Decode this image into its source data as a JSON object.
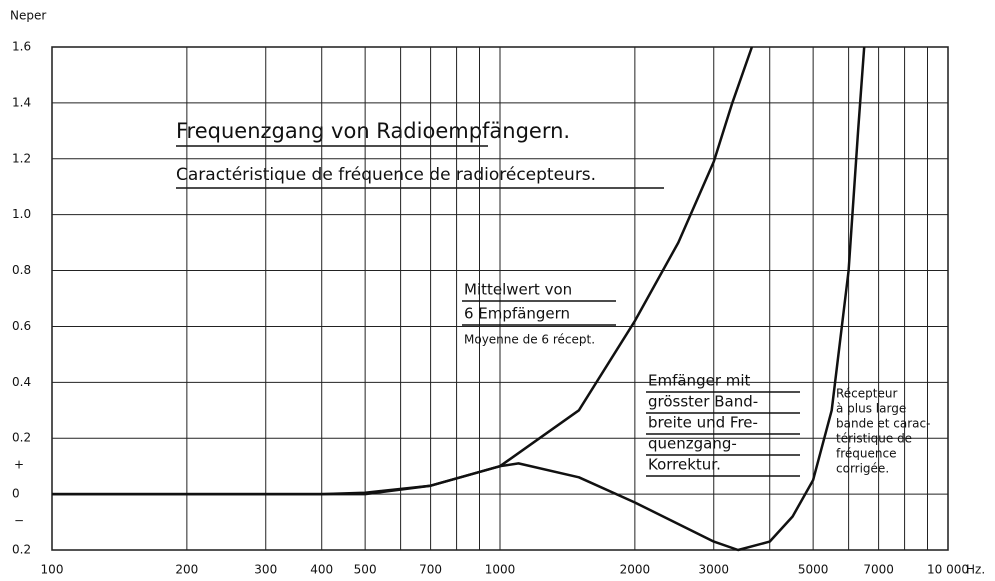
{
  "chart_data": {
    "type": "line",
    "title": "Frequenzgang von Radioempfängern.",
    "subtitle": "Caractéristique de fréquence de radiorécepteurs.",
    "ylabel": "Neper",
    "xlabel": "Hz.",
    "xscale": "log",
    "grid": true,
    "xlim": [
      100,
      10000
    ],
    "ylim": [
      -0.2,
      1.6
    ],
    "xticks": [
      100,
      200,
      300,
      400,
      500,
      700,
      1000,
      2000,
      3000,
      5000,
      7000,
      {
        "value": 10000,
        "label": "10 000"
      }
    ],
    "x_minor_ticks": [
      600,
      800,
      900,
      4000,
      6000,
      8000,
      9000
    ],
    "yticks": [
      {
        "value": -0.2,
        "label": "0.2"
      },
      0,
      0.2,
      0.4,
      0.6,
      0.8,
      {
        "value": 1,
        "label": "1.0"
      },
      1.2,
      1.4,
      1.6
    ],
    "sign_plus": "+",
    "sign_minus": "−",
    "series": [
      {
        "color": "#111",
        "x": [
          100,
          300,
          400,
          500,
          700,
          1000,
          1500,
          2000,
          2500,
          3000,
          3300,
          3650
        ],
        "values": [
          0,
          0,
          0,
          0.005,
          0.03,
          0.1,
          0.3,
          0.62,
          0.9,
          1.19,
          1.4,
          1.6
        ]
      },
      {
        "color": "#111",
        "x": [
          100,
          400,
          500,
          700,
          1000,
          1100,
          1500,
          2000,
          3000,
          3400,
          4000,
          4500,
          5000,
          5500,
          6000,
          6300,
          6500
        ],
        "values": [
          0,
          0,
          0,
          0.03,
          0.1,
          0.11,
          0.06,
          -0.03,
          -0.17,
          -0.2,
          -0.17,
          -0.08,
          0.05,
          0.3,
          0.8,
          1.3,
          1.6
        ]
      }
    ],
    "annotations": [
      {
        "lines": [
          "Mittelwert von",
          "6 Empfängern"
        ],
        "small": "Moyenne de 6 récept."
      },
      {
        "lines": [
          "Emfänger mit",
          "grösster Band-",
          "breite und Fre-",
          "quenzgang-",
          "Korrektur."
        ]
      },
      {
        "lines": [
          "Récepteur",
          "à plus large",
          "bande et carac-",
          "téristique de",
          "fréquence",
          "corrigée."
        ]
      }
    ]
  }
}
